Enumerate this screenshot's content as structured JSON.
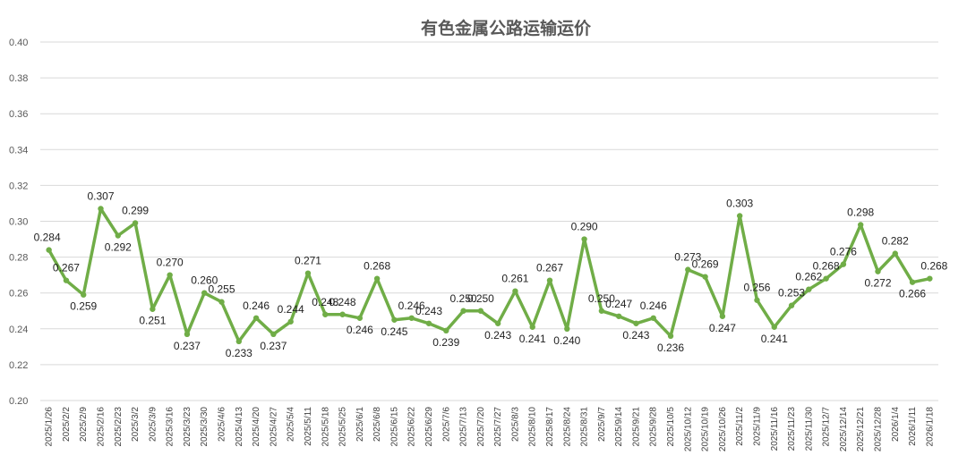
{
  "chart_data": {
    "type": "line",
    "title": "有色金属公路运输运价",
    "xlabel": "",
    "ylabel": "",
    "ylim": [
      0.2,
      0.4
    ],
    "yticks": [
      "0.20",
      "0.22",
      "0.24",
      "0.26",
      "0.28",
      "0.30",
      "0.32",
      "0.34",
      "0.36",
      "0.38",
      "0.40"
    ],
    "grid": true,
    "legend": "none",
    "line_color": "#70ad47",
    "categories": [
      "2025/1/26",
      "2025/2/2",
      "2025/2/9",
      "2025/2/16",
      "2025/2/23",
      "2025/3/2",
      "2025/3/9",
      "2025/3/16",
      "2025/3/23",
      "2025/3/30",
      "2025/4/6",
      "2025/4/13",
      "2025/4/20",
      "2025/4/27",
      "2025/5/4",
      "2025/5/11",
      "2025/5/18",
      "2025/5/25",
      "2025/6/1",
      "2025/6/8",
      "2025/6/15",
      "2025/6/22",
      "2025/6/29",
      "2025/7/6",
      "2025/7/13",
      "2025/7/20",
      "2025/7/27",
      "2025/8/3",
      "2025/8/10",
      "2025/8/17",
      "2025/8/24",
      "2025/8/31",
      "2025/9/7",
      "2025/9/14",
      "2025/9/21",
      "2025/9/28",
      "2025/10/5",
      "2025/10/12",
      "2025/10/19",
      "2025/10/26",
      "2025/11/2",
      "2025/11/9",
      "2025/11/16",
      "2025/11/23",
      "2025/11/30",
      "2025/12/7",
      "2025/12/14",
      "2025/12/21",
      "2025/12/28",
      "2026/1/4",
      "2026/1/11",
      "2026/1/18"
    ],
    "values": [
      0.284,
      0.267,
      0.259,
      0.307,
      0.292,
      0.299,
      0.251,
      0.27,
      0.237,
      0.26,
      0.255,
      0.233,
      0.246,
      0.237,
      0.244,
      0.271,
      0.248,
      0.248,
      0.246,
      0.268,
      0.245,
      0.246,
      0.243,
      0.239,
      0.25,
      0.25,
      0.243,
      0.261,
      0.241,
      0.267,
      0.24,
      0.29,
      0.25,
      0.247,
      0.243,
      0.246,
      0.236,
      0.273,
      0.269,
      0.247,
      0.303,
      0.256,
      0.241,
      0.253,
      0.262,
      0.268,
      0.276,
      0.298,
      0.272,
      0.282,
      0.266,
      0.268
    ],
    "labels": [
      "0.284",
      "0.267",
      "0.259",
      "0.307",
      "0.292",
      "0.299",
      "0.251",
      "0.270",
      "0.237",
      "0.260",
      "0.255",
      "0.233",
      "0.246",
      "0.237",
      "0.244",
      "0.271",
      "0.248",
      "0.248",
      "0.246",
      "0.268",
      "0.245",
      "0.246",
      "0.243",
      "0.239",
      "0.250",
      "0.250",
      "0.243",
      "0.261",
      "0.241",
      "0.267",
      "0.240",
      "0.290",
      "0.250",
      "0.247",
      "0.243",
      "0.246",
      "0.236",
      "0.273",
      "0.269",
      "0.247",
      "0.303",
      "0.256",
      "0.241",
      "0.253",
      "0.262",
      "0.268",
      "0.276",
      "0.298",
      "0.272",
      "0.282",
      "0.266",
      "0.268"
    ]
  }
}
